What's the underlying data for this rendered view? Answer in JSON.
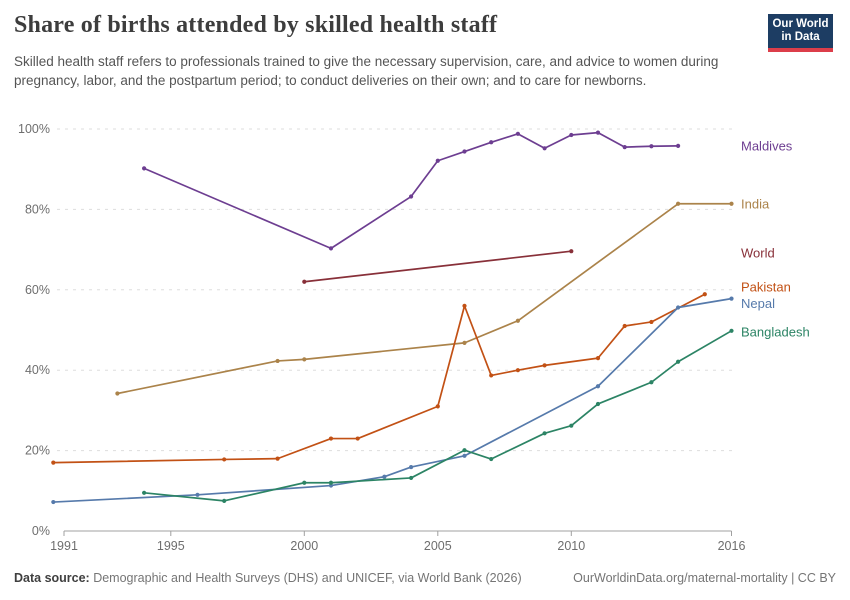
{
  "header": {
    "title": "Share of births attended by skilled health staff",
    "subtitle": "Skilled health staff refers to professionals trained to give the necessary supervision, care, and advice to women during pregnancy, labor, and the postpartum period; to conduct deliveries on their own; and to care for newborns.",
    "logo": {
      "line1": "Our World",
      "line2": "in Data",
      "bg": "#1d3d63",
      "accent": "#dc3e4a"
    }
  },
  "chart_data": {
    "type": "line",
    "title": "Share of births attended by skilled health staff",
    "xlabel": "",
    "ylabel": "",
    "x_ticks": [
      1991,
      1995,
      2000,
      2005,
      2010,
      2016
    ],
    "y_ticks": [
      0,
      20,
      40,
      60,
      80,
      100
    ],
    "y_tick_suffix": "%",
    "xlim": [
      1990.3,
      2016.9
    ],
    "ylim": [
      0,
      100
    ],
    "grid": "horizontal-dashed",
    "grid_color": "#dddddd",
    "axis_color": "#a0a0a0",
    "tick_label_color": "#6e6e6e",
    "legend_position": "right-margin",
    "series": [
      {
        "name": "Maldives",
        "color": "#6d3e91",
        "label_dy": 0,
        "points": [
          [
            1994,
            90.2
          ],
          [
            2001,
            70.3
          ],
          [
            2004,
            83.2
          ],
          [
            2005,
            92.1
          ],
          [
            2006,
            94.4
          ],
          [
            2007,
            96.7
          ],
          [
            2008,
            98.8
          ],
          [
            2009,
            95.2
          ],
          [
            2010,
            98.5
          ],
          [
            2011,
            99.1
          ],
          [
            2012,
            95.5
          ],
          [
            2013,
            95.7
          ],
          [
            2014,
            95.8
          ]
        ]
      },
      {
        "name": "India",
        "color": "#ab834a",
        "label_dy": 0,
        "points": [
          [
            1993,
            34.2
          ],
          [
            1999,
            42.3
          ],
          [
            2000,
            42.7
          ],
          [
            2006,
            46.8
          ],
          [
            2008,
            52.3
          ],
          [
            2014,
            81.4
          ],
          [
            2016,
            81.4
          ]
        ]
      },
      {
        "name": "World",
        "color": "#883039",
        "label_dy": 2,
        "points": [
          [
            2000,
            62
          ],
          [
            2010,
            69.6
          ]
        ]
      },
      {
        "name": "Pakistan",
        "color": "#c25115",
        "label_dy": -7,
        "points": [
          [
            1990.6,
            17
          ],
          [
            1997,
            17.8
          ],
          [
            1999,
            18
          ],
          [
            2001,
            23
          ],
          [
            2002,
            23
          ],
          [
            2005,
            31
          ],
          [
            2006,
            56
          ],
          [
            2007,
            38.7
          ],
          [
            2008,
            40
          ],
          [
            2009,
            41.2
          ],
          [
            2011,
            43
          ],
          [
            2012,
            51
          ],
          [
            2013,
            52
          ],
          [
            2015,
            58.9
          ]
        ]
      },
      {
        "name": "Nepal",
        "color": "#567aab",
        "label_dy": 5,
        "points": [
          [
            1990.6,
            7.2
          ],
          [
            1996,
            9
          ],
          [
            2001,
            11.3
          ],
          [
            2003,
            13.5
          ],
          [
            2004,
            15.9
          ],
          [
            2006,
            18.7
          ],
          [
            2011,
            36
          ],
          [
            2014,
            55.6
          ],
          [
            2016,
            57.8
          ]
        ]
      },
      {
        "name": "Bangladesh",
        "color": "#2c8465",
        "label_dy": 1,
        "points": [
          [
            1994,
            9.5
          ],
          [
            1997,
            7.5
          ],
          [
            2000,
            12
          ],
          [
            2001,
            12
          ],
          [
            2004,
            13.2
          ],
          [
            2006,
            20.1
          ],
          [
            2007,
            17.9
          ],
          [
            2009,
            24.3
          ],
          [
            2010,
            26.2
          ],
          [
            2011,
            31.6
          ],
          [
            2013,
            37
          ],
          [
            2014,
            42.1
          ],
          [
            2016,
            49.8
          ]
        ]
      }
    ]
  },
  "footer": {
    "source_label": "Data source:",
    "source_text": " Demographic and Health Surveys (DHS) and UNICEF, via World Bank (2026)",
    "attribution": "OurWorldinData.org/maternal-mortality | CC BY"
  }
}
